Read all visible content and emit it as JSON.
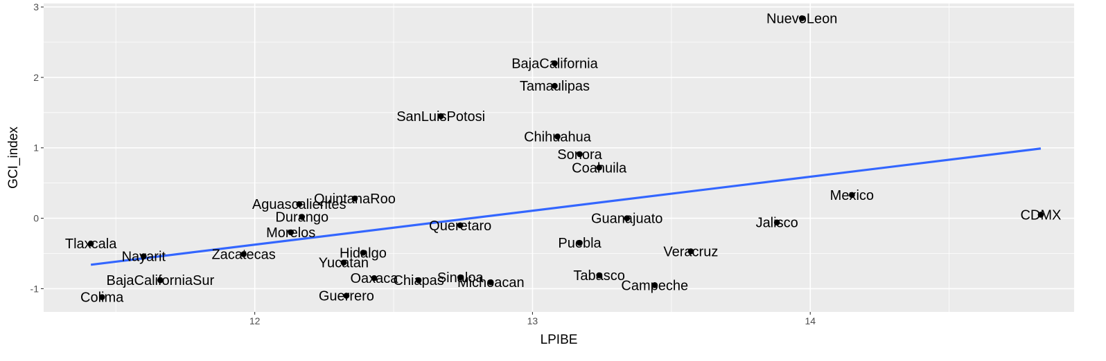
{
  "chart_data": {
    "type": "scatter",
    "xlabel": "LPIBE",
    "ylabel": "GCI_index",
    "xlim": [
      11.24,
      14.95
    ],
    "ylim": [
      -1.33,
      3.05
    ],
    "x_ticks": [
      12,
      13,
      14
    ],
    "y_ticks": [
      -1,
      0,
      1,
      2,
      3
    ],
    "x_tick_labels": [
      "12",
      "13",
      "14"
    ],
    "y_tick_labels": [
      "-1",
      "0",
      "1",
      "2",
      "3"
    ],
    "grid": true,
    "background": "#ebebeb",
    "grid_color": "#ffffff",
    "point_color": "#000000",
    "fit_line": {
      "color": "#3366ff",
      "x": [
        11.41,
        14.83
      ],
      "y": [
        -0.66,
        0.99
      ]
    },
    "points": [
      {
        "label": "NuevoLeon",
        "x": 13.97,
        "y": 2.84
      },
      {
        "label": "BajaCalifornia",
        "x": 13.08,
        "y": 2.2
      },
      {
        "label": "Tamaulipas",
        "x": 13.08,
        "y": 1.88
      },
      {
        "label": "SanLuisPotosi",
        "x": 12.67,
        "y": 1.45
      },
      {
        "label": "Chihuahua",
        "x": 13.09,
        "y": 1.16
      },
      {
        "label": "Sonora",
        "x": 13.17,
        "y": 0.91
      },
      {
        "label": "Coahuila",
        "x": 13.24,
        "y": 0.72
      },
      {
        "label": "Mexico",
        "x": 14.15,
        "y": 0.33
      },
      {
        "label": "CDMX",
        "x": 14.83,
        "y": 0.05
      },
      {
        "label": "QuintanaRoo",
        "x": 12.36,
        "y": 0.28
      },
      {
        "label": "Aguascalientes",
        "x": 12.16,
        "y": 0.2
      },
      {
        "label": "Durango",
        "x": 12.17,
        "y": 0.02
      },
      {
        "label": "Queretaro",
        "x": 12.74,
        "y": -0.1
      },
      {
        "label": "Guanajuato",
        "x": 13.34,
        "y": 0.0
      },
      {
        "label": "Jalisco",
        "x": 13.88,
        "y": -0.06
      },
      {
        "label": "Morelos",
        "x": 12.13,
        "y": -0.2
      },
      {
        "label": "Tlaxcala",
        "x": 11.41,
        "y": -0.36
      },
      {
        "label": "Puebla",
        "x": 13.17,
        "y": -0.35
      },
      {
        "label": "Veracruz",
        "x": 13.57,
        "y": -0.47
      },
      {
        "label": "Nayarit",
        "x": 11.6,
        "y": -0.54
      },
      {
        "label": "Zacatecas",
        "x": 11.96,
        "y": -0.51
      },
      {
        "label": "Hidalgo",
        "x": 12.39,
        "y": -0.49
      },
      {
        "label": "Yucatan",
        "x": 12.32,
        "y": -0.63
      },
      {
        "label": "Tabasco",
        "x": 13.24,
        "y": -0.81
      },
      {
        "label": "BajaCaliforniaSur",
        "x": 11.66,
        "y": -0.88
      },
      {
        "label": "Oaxaca",
        "x": 12.43,
        "y": -0.85
      },
      {
        "label": "Chiapas",
        "x": 12.59,
        "y": -0.88
      },
      {
        "label": "Sinaloa",
        "x": 12.74,
        "y": -0.84
      },
      {
        "label": "Michoacan",
        "x": 12.85,
        "y": -0.91
      },
      {
        "label": "Campeche",
        "x": 13.44,
        "y": -0.95
      },
      {
        "label": "Colima",
        "x": 11.45,
        "y": -1.12
      },
      {
        "label": "Guerrero",
        "x": 12.33,
        "y": -1.1
      }
    ]
  }
}
